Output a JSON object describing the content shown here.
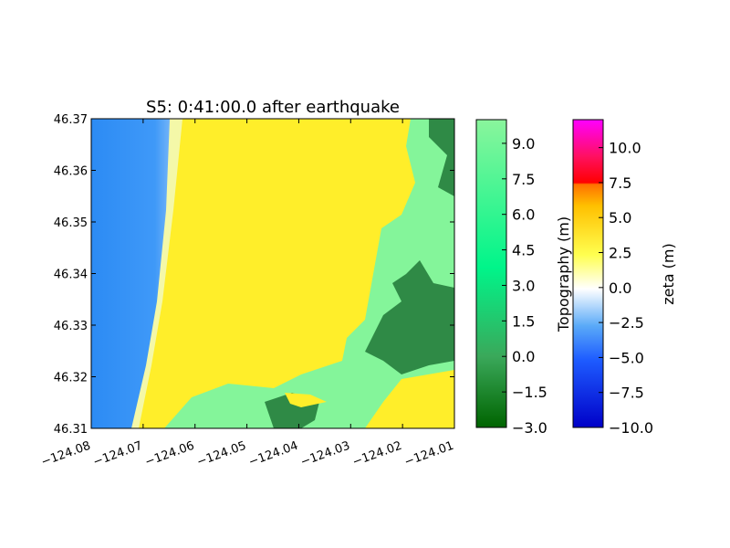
{
  "chart_data": {
    "type": "heatmap",
    "title": "S5: 0:41:00.0 after earthquake",
    "xlabel": "",
    "ylabel": "",
    "xlim": [
      -124.08,
      -124.01
    ],
    "ylim": [
      46.31,
      46.37
    ],
    "x_ticks": [
      "−124.08",
      "−124.07",
      "−124.06",
      "−124.05",
      "−124.04",
      "−124.03",
      "−124.02",
      "−124.01"
    ],
    "y_ticks": [
      "46.31",
      "46.32",
      "46.33",
      "46.34",
      "46.35",
      "46.36",
      "46.37"
    ],
    "x_tick_values": [
      -124.08,
      -124.07,
      -124.06,
      -124.05,
      -124.04,
      -124.03,
      -124.02,
      -124.01
    ],
    "y_tick_values": [
      46.31,
      46.32,
      46.33,
      46.34,
      46.35,
      46.36,
      46.37
    ],
    "regions": {
      "ocean": {
        "description_color": "#2a88f5",
        "zeta_m": -5.0
      },
      "inundation": {
        "description_color": "#ffef2a",
        "zeta_m": 3.0
      },
      "dry_land_high": {
        "description_color": "#84f59a",
        "topography_m": 8.5
      },
      "dry_land_low": {
        "description_color": "#2f8a46",
        "topography_m": -1.0
      }
    },
    "colorbars": [
      {
        "label": "Topography (m)",
        "range": [
          -3.0,
          10.0
        ],
        "tick_values": [
          -3.0,
          -1.5,
          0.0,
          1.5,
          3.0,
          4.5,
          6.0,
          7.5,
          9.0
        ],
        "tick_labels": [
          "−3.0",
          "−1.5",
          "0.0",
          "1.5",
          "3.0",
          "4.5",
          "6.0",
          "7.5",
          "9.0"
        ],
        "colors": [
          "#006400",
          "#3aa85a",
          "#00f58a",
          "#85f9a0"
        ]
      },
      {
        "label": "zeta (m)",
        "range": [
          -10.0,
          12.0
        ],
        "tick_values": [
          -10.0,
          -7.5,
          -5.0,
          -2.5,
          0.0,
          2.5,
          5.0,
          7.5,
          10.0
        ],
        "tick_labels": [
          "−10.0",
          "−7.5",
          "−5.0",
          "−2.5",
          "0.0",
          "2.5",
          "5.0",
          "7.5",
          "10.0"
        ],
        "colors": [
          "#0000c8",
          "#3a8cff",
          "#ffffff",
          "#ffff00",
          "#ff6a00",
          "#ff0000",
          "#ff00ff"
        ]
      }
    ]
  }
}
